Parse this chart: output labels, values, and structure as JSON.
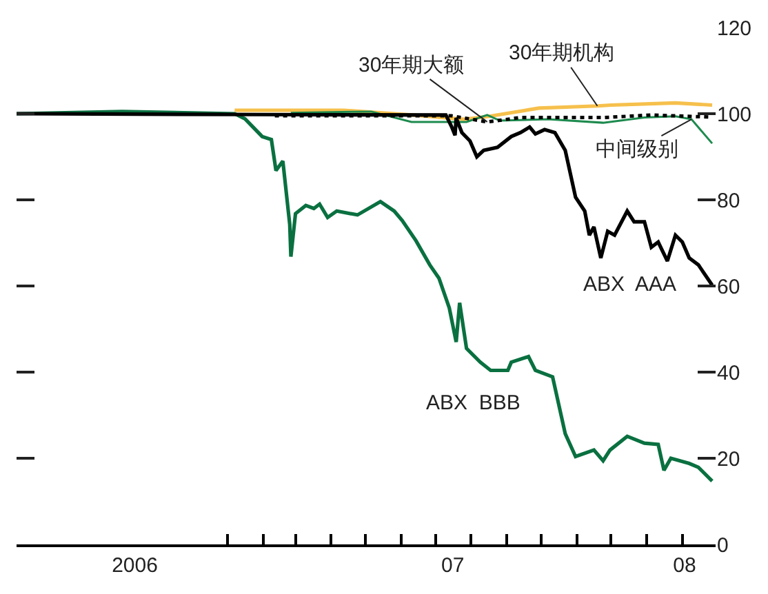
{
  "chart_data": {
    "type": "line",
    "xlim": [
      "2006-07-01",
      "2008-03-01"
    ],
    "ylim": [
      0,
      120
    ],
    "yticks": [
      0,
      20,
      40,
      60,
      80,
      100,
      120
    ],
    "xticks": [
      {
        "value": "2006-10-12",
        "label": "2006"
      },
      {
        "value": "2007-07-16",
        "label": "07"
      },
      {
        "value": "2008-02-03",
        "label": "08"
      },
      {
        "value": "2007-01-01",
        "label": null
      },
      {
        "value": "2007-02-01",
        "label": null
      },
      {
        "value": "2007-03-01",
        "label": null
      },
      {
        "value": "2007-04-01",
        "label": null
      },
      {
        "value": "2007-05-01",
        "label": null
      },
      {
        "value": "2007-06-01",
        "label": null
      },
      {
        "value": "2007-07-01",
        "label": null
      },
      {
        "value": "2007-08-01",
        "label": null
      },
      {
        "value": "2007-09-01",
        "label": null
      },
      {
        "value": "2007-10-01",
        "label": null
      },
      {
        "value": "2007-11-01",
        "label": null
      },
      {
        "value": "2007-12-01",
        "label": null
      },
      {
        "value": "2008-01-01",
        "label": null
      },
      {
        "value": "2008-02-01",
        "label": null
      }
    ],
    "legend": false,
    "marker": "none",
    "series": [
      {
        "name": "30年期机构",
        "color": "#f6c04c",
        "line_style": "solid",
        "x": [
          "2007-01-07",
          "2007-04-12",
          "2007-06-06",
          "2007-07-26",
          "2007-08-17",
          "2007-09-29",
          "2007-11-19",
          "2007-12-01",
          "2008-01-26",
          "2008-02-27"
        ],
        "values": [
          100.8,
          100.8,
          99.8,
          98.7,
          99.4,
          101.3,
          101.8,
          102,
          102.5,
          102
        ]
      },
      {
        "name": "中间级别",
        "color": "#1d8a4e",
        "line_style": "solid",
        "x": [
          "2007-02-25",
          "2007-05-06",
          "2007-06-10",
          "2007-07-28",
          "2007-08-15",
          "2007-08-26",
          "2007-10-07",
          "2007-11-24",
          "2007-12-30",
          "2008-01-26",
          "2008-02-09",
          "2008-02-27"
        ],
        "values": [
          100.2,
          100.5,
          98.1,
          98.1,
          99.7,
          98.4,
          98.7,
          97.9,
          99.1,
          99.4,
          98.7,
          93.1
        ]
      },
      {
        "name": "30年期大额",
        "color": "#000000",
        "line_style": "dotted",
        "x": [
          "2007-02-11",
          "2007-07-15",
          "2007-08-15",
          "2007-09-13",
          "2007-11-24",
          "2008-01-05",
          "2008-02-27"
        ],
        "values": [
          99.5,
          99.5,
          98.1,
          99.1,
          99.1,
          99.7,
          99.2
        ]
      },
      {
        "name": "ABX  BBB",
        "color": "#0a7040",
        "line_style": "solid",
        "x": [
          "2006-07-01",
          "2006-10-01",
          "2007-01-07",
          "2007-01-16",
          "2007-01-31",
          "2007-02-08",
          "2007-02-12",
          "2007-02-18",
          "2007-02-24",
          "2007-02-25",
          "2007-03-01",
          "2007-03-10",
          "2007-03-17",
          "2007-03-22",
          "2007-03-29",
          "2007-04-06",
          "2007-04-24",
          "2007-05-14",
          "2007-05-26",
          "2007-06-02",
          "2007-06-14",
          "2007-06-26",
          "2007-07-04",
          "2007-07-13",
          "2007-07-19",
          "2007-07-22",
          "2007-07-28",
          "2007-08-09",
          "2007-08-18",
          "2007-09-02",
          "2007-09-05",
          "2007-09-20",
          "2007-09-26",
          "2007-10-11",
          "2007-10-22",
          "2007-10-31",
          "2007-11-16",
          "2007-11-24",
          "2007-11-30",
          "2007-12-15",
          "2007-12-30",
          "2008-01-11",
          "2008-01-16",
          "2008-01-22",
          "2008-02-07",
          "2008-02-15",
          "2008-02-27"
        ],
        "values": [
          100,
          100.5,
          100,
          98.8,
          94.7,
          94,
          86.8,
          89,
          74.3,
          66.8,
          76.8,
          78.7,
          78,
          79,
          75.9,
          77.4,
          76.5,
          79.6,
          77.4,
          75.2,
          70.5,
          64.9,
          61.8,
          54.9,
          47,
          56.1,
          45.5,
          42.3,
          40.4,
          40.4,
          42.3,
          43.6,
          40.4,
          38.9,
          25.7,
          20.4,
          21.9,
          19.4,
          21.9,
          25.1,
          23.5,
          23.2,
          17.2,
          20,
          18.8,
          17.9,
          14.7
        ]
      },
      {
        "name": "ABX  AAA",
        "color": "#000000",
        "line_style": "solid",
        "x": [
          "2006-07-01",
          "2007-02-01",
          "2007-07-10",
          "2007-07-15",
          "2007-07-18",
          "2007-07-19",
          "2007-07-24",
          "2007-07-31",
          "2007-08-06",
          "2007-08-12",
          "2007-08-24",
          "2007-09-05",
          "2007-09-13",
          "2007-09-21",
          "2007-09-26",
          "2007-10-04",
          "2007-10-13",
          "2007-10-22",
          "2007-10-31",
          "2007-11-08",
          "2007-11-12",
          "2007-11-16",
          "2007-11-22",
          "2007-11-28",
          "2007-12-04",
          "2007-12-15",
          "2007-12-21",
          "2007-12-30",
          "2008-01-05",
          "2008-01-11",
          "2008-01-19",
          "2008-01-26",
          "2008-02-01",
          "2008-02-07",
          "2008-02-15",
          "2008-02-27"
        ],
        "values": [
          100,
          99.8,
          99.7,
          97,
          95,
          99,
          95.6,
          93.7,
          90,
          91.5,
          92.2,
          94.7,
          95.6,
          96.9,
          95.3,
          96.3,
          95.6,
          91.5,
          80.6,
          77.4,
          71.8,
          73.7,
          66.5,
          72.7,
          71.8,
          77.4,
          74.9,
          74.9,
          69,
          70.2,
          65.8,
          71.8,
          70.2,
          66.5,
          64.9,
          60.2
        ]
      }
    ]
  }
}
